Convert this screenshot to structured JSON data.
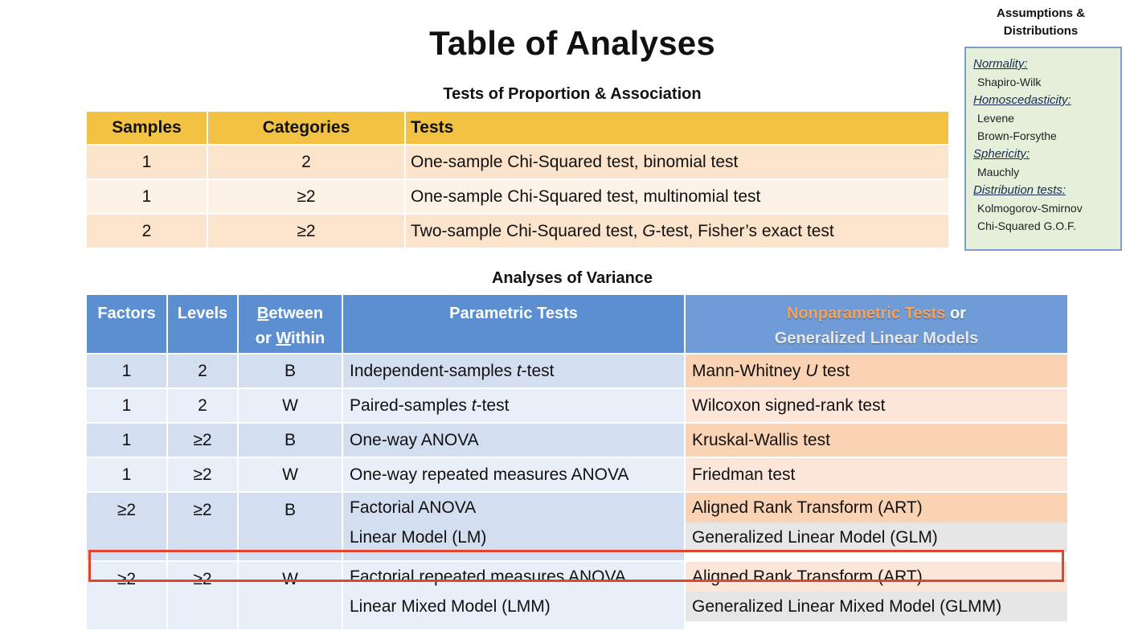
{
  "title": "Table of Analyses",
  "proportion": {
    "heading": "Tests of Proportion & Association",
    "columns": [
      "Samples",
      "Categories",
      "Tests"
    ],
    "rows": [
      {
        "samples": "1",
        "categories": "2",
        "tests": "One-sample Chi-Squared test, binomial test"
      },
      {
        "samples": "1",
        "categories": "≥2",
        "tests": "One-sample Chi-Squared test, multinomial test"
      },
      {
        "samples": "2",
        "categories": "≥2",
        "tests_a": "Two-sample Chi-Squared test, ",
        "tests_italic": "G",
        "tests_b": "-test, Fisher’s exact test"
      }
    ]
  },
  "anova": {
    "heading": "Analyses of Variance",
    "columns": {
      "factors": "Factors",
      "levels": "Levels",
      "between_u": "B",
      "between_rest": "etween",
      "or": "or ",
      "within_u": "W",
      "within_rest": "ithin",
      "parametric": "Parametric Tests",
      "nonparametric": "Nonparametric Tests",
      "nonparametric_or": " or",
      "glm": "Generalized Linear Models"
    },
    "rows": [
      {
        "factors": "1",
        "levels": "2",
        "bw": "B",
        "param_a": "Independent-samples ",
        "param_i": "t",
        "param_b": "-test",
        "np_a": "Mann-Whitney ",
        "np_i": "U",
        "np_b": " test"
      },
      {
        "factors": "1",
        "levels": "2",
        "bw": "W",
        "param_a": "Paired-samples ",
        "param_i": "t",
        "param_b": "-test",
        "np_a": "Wilcoxon signed-rank test"
      },
      {
        "factors": "1",
        "levels": "≥2",
        "bw": "B",
        "param_a": "One-way ANOVA",
        "np_a": "Kruskal-Wallis test"
      },
      {
        "factors": "1",
        "levels": "≥2",
        "bw": "W",
        "param_a": "One-way repeated measures ANOVA",
        "np_a": "Friedman test"
      },
      {
        "factors": "≥2",
        "levels": "≥2",
        "bw": "B",
        "param_1": "Factorial ANOVA",
        "param_2": "Linear Model (LM)",
        "np_1": "Aligned Rank Transform (ART)",
        "np_2": "Generalized Linear Model (GLM)"
      },
      {
        "factors": "≥2",
        "levels": "≥2",
        "bw": "W",
        "param_1": "Factorial repeated measures ANOVA",
        "param_2": "Linear Mixed Model (LMM)",
        "np_1": "Aligned Rank Transform (ART)",
        "np_2": "Generalized Linear Mixed Model (GLMM)"
      }
    ],
    "highlight_color": "#e0452e"
  },
  "assumptions": {
    "title_1": "Assumptions &",
    "title_2": "Distributions",
    "normality": "Normality:",
    "normality_tests": [
      "Shapiro-Wilk"
    ],
    "homoscedasticity": "Homoscedasticity:",
    "homoscedasticity_tests": [
      "Levene",
      "Brown-Forsythe"
    ],
    "sphericity": "Sphericity:",
    "sphericity_tests": [
      "Mauchly"
    ],
    "distribution": "Distribution tests:",
    "distribution_tests": [
      "Kolmogorov-Smirnov",
      "Chi-Squared G.O.F."
    ]
  },
  "colors": {
    "proportion_header": "#f4c242",
    "anova_header": "#5b8fd1",
    "nonparametric_accent": "#f3a35d",
    "assumptions_bg": "#e5efda"
  }
}
